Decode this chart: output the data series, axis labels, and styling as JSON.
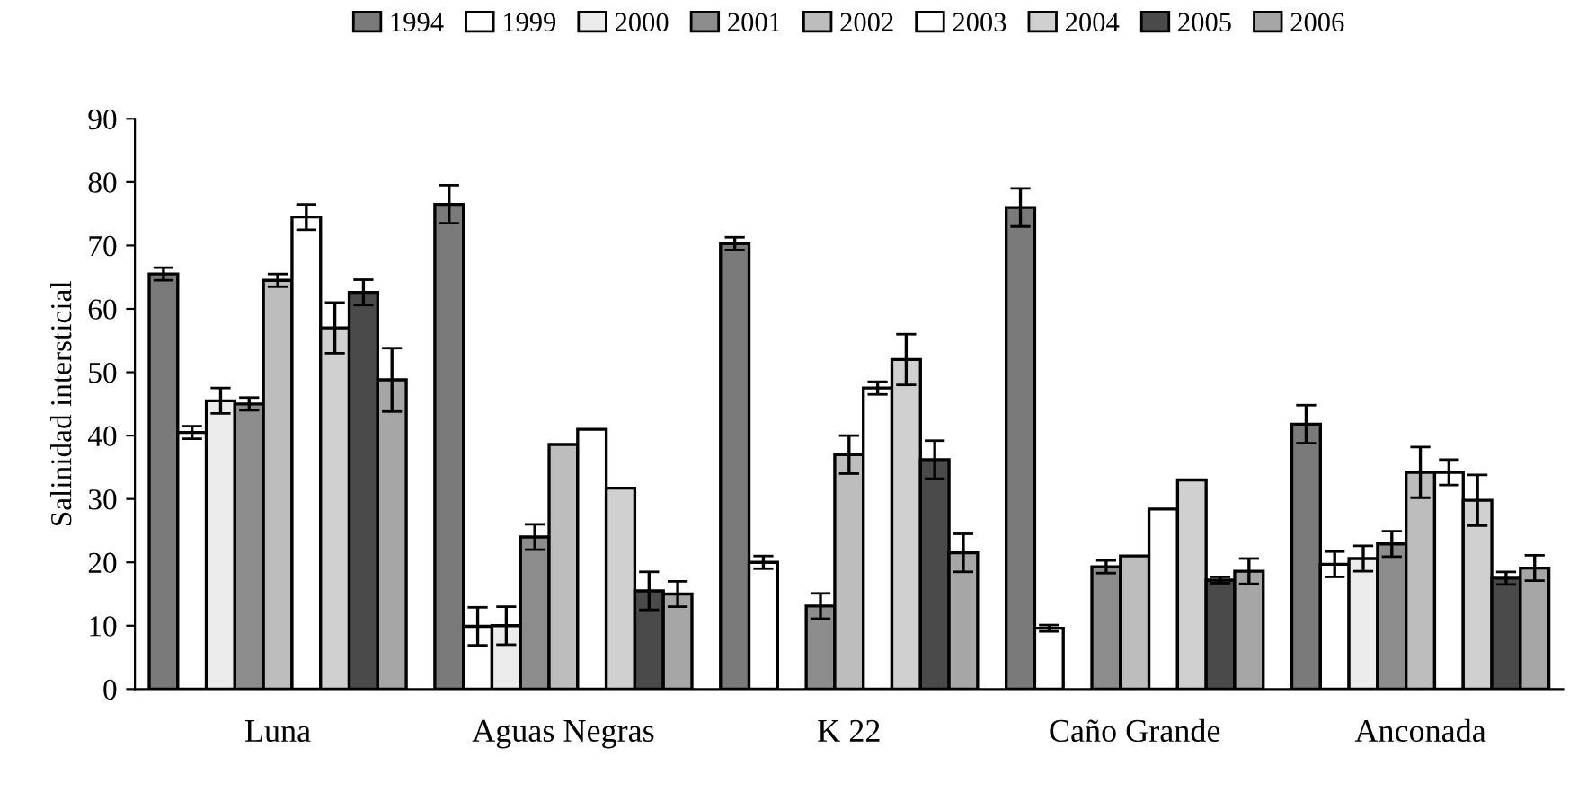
{
  "chart_data": {
    "type": "bar",
    "ylabel": "Salinidad intersticial",
    "categories": [
      "Luna",
      "Aguas Negras",
      "K 22",
      "Caño Grande",
      "Anconada"
    ],
    "ylim": [
      0,
      90
    ],
    "yticks": [
      0,
      10,
      20,
      30,
      40,
      50,
      60,
      70,
      80,
      90
    ],
    "grid": false,
    "legend": "top",
    "series": [
      {
        "name": "1994",
        "color": "#7a7a7a",
        "values": [
          65.5,
          76.5,
          70.3,
          76,
          41.8
        ],
        "errors": [
          1,
          3,
          1,
          3,
          3
        ]
      },
      {
        "name": "1999",
        "color": "#ffffff",
        "values": [
          40.5,
          9.9,
          20,
          9.6,
          19.7
        ],
        "errors": [
          1,
          3,
          1,
          0.5,
          2
        ]
      },
      {
        "name": "2000",
        "color": "#ebebeb",
        "values": [
          45.5,
          10,
          null,
          null,
          20.6
        ],
        "errors": [
          2,
          3,
          null,
          null,
          2
        ]
      },
      {
        "name": "2001",
        "color": "#8c8c8c",
        "values": [
          45,
          24,
          13.1,
          19.3,
          22.9
        ],
        "errors": [
          1,
          2,
          2,
          1,
          2
        ]
      },
      {
        "name": "2002",
        "color": "#bdbdbd",
        "values": [
          64.5,
          38.6,
          37,
          21,
          34.2
        ],
        "errors": [
          1,
          null,
          3,
          null,
          4
        ]
      },
      {
        "name": "2003",
        "color": "#ffffff",
        "values": [
          74.5,
          41,
          47.5,
          28.4,
          34.2
        ],
        "errors": [
          2,
          null,
          1,
          null,
          2
        ]
      },
      {
        "name": "2004",
        "color": "#d0d0d0",
        "values": [
          57,
          31.7,
          52,
          33,
          29.8
        ],
        "errors": [
          4,
          null,
          4,
          null,
          4
        ]
      },
      {
        "name": "2005",
        "color": "#4a4a4a",
        "values": [
          62.6,
          15.5,
          36.2,
          17.2,
          17.5
        ],
        "errors": [
          2,
          3,
          3,
          0.5,
          1
        ]
      },
      {
        "name": "2006",
        "color": "#a6a6a6",
        "values": [
          48.8,
          15,
          21.5,
          18.6,
          19.1
        ],
        "errors": [
          5,
          2,
          3,
          2,
          2
        ]
      }
    ]
  }
}
